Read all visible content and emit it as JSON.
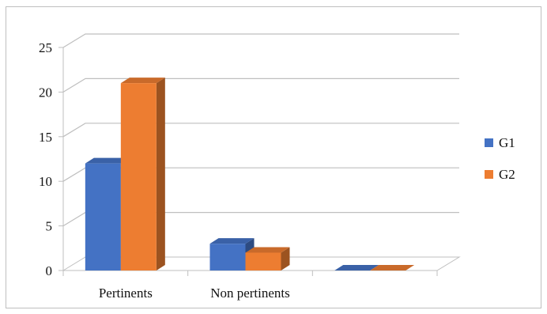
{
  "chart_data": {
    "type": "bar",
    "style": "3d-clustered-column",
    "categories": [
      "Pertinents",
      "Non pertinents",
      ""
    ],
    "series": [
      {
        "name": "G1",
        "values": [
          12,
          3,
          0
        ],
        "color": "#4472C4"
      },
      {
        "name": "G2",
        "values": [
          21,
          2,
          0
        ],
        "color": "#ED7D31"
      }
    ],
    "ylim": [
      0,
      25
    ],
    "yticks": [
      "0",
      "5",
      "10",
      "15",
      "20",
      "25"
    ],
    "grid": true,
    "legend": "right"
  }
}
